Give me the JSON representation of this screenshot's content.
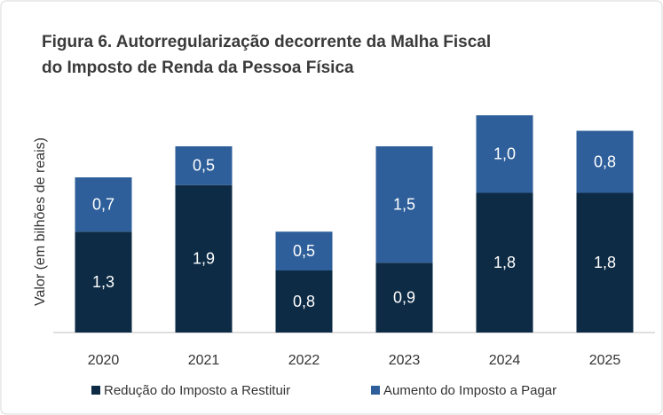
{
  "chart_data": {
    "type": "stacked-bar",
    "title": [
      "Figura 6. Autorregularização decorrente da Malha Fiscal",
      "do Imposto de Renda da Pessoa Física"
    ],
    "ylabel": "Valor (em bilhões de reais)",
    "categories": [
      "2020",
      "2021",
      "2022",
      "2023",
      "2024",
      "2025"
    ],
    "series": [
      {
        "name": "Redução do Imposto a Restituir",
        "color": "#0d2b45",
        "values": [
          1.3,
          1.9,
          0.8,
          0.9,
          1.8,
          1.8
        ],
        "value_labels": [
          "1,3",
          "1,9",
          "0,8",
          "0,9",
          "1,8",
          "1,8"
        ]
      },
      {
        "name": "Aumento do Imposto a Pagar",
        "color": "#2e5f9a",
        "values": [
          0.7,
          0.5,
          0.5,
          1.5,
          1.0,
          0.8
        ],
        "value_labels": [
          "0,7",
          "0,5",
          "0,5",
          "1,5",
          "1,0",
          "0,8"
        ]
      }
    ],
    "legend": "bottom"
  }
}
